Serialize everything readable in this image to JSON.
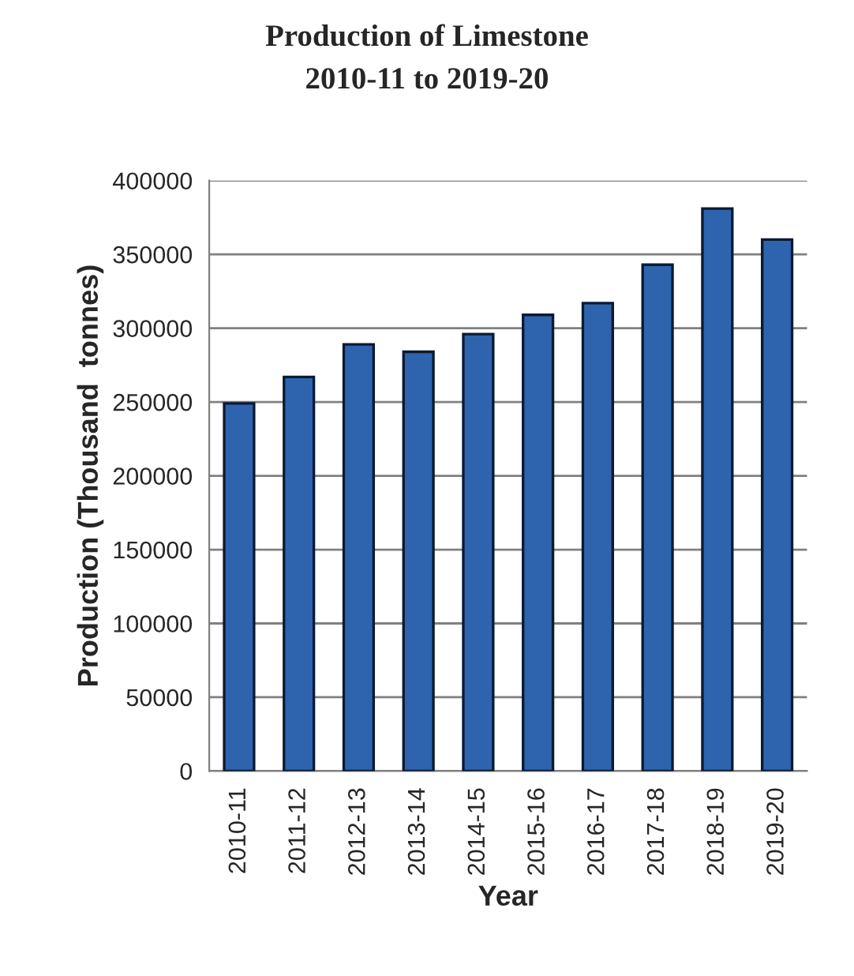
{
  "chart_data": {
    "type": "bar",
    "title": "Production of Limestone\n2010-11 to 2019-20",
    "xlabel": "Year",
    "ylabel": "Production (Thousand  tonnes)",
    "categories": [
      "2010-11",
      "2011-12",
      "2012-13",
      "2013-14",
      "2014-15",
      "2015-16",
      "2016-17",
      "2017-18",
      "2018-19",
      "2019-20"
    ],
    "values": [
      249000,
      267000,
      289000,
      284000,
      296000,
      309000,
      317000,
      343000,
      381000,
      360000
    ],
    "color": "#2e64ad",
    "ylim": [
      0,
      400000
    ],
    "yticks": [
      0,
      50000,
      100000,
      150000,
      200000,
      250000,
      300000,
      350000,
      400000
    ],
    "grid": "y"
  }
}
